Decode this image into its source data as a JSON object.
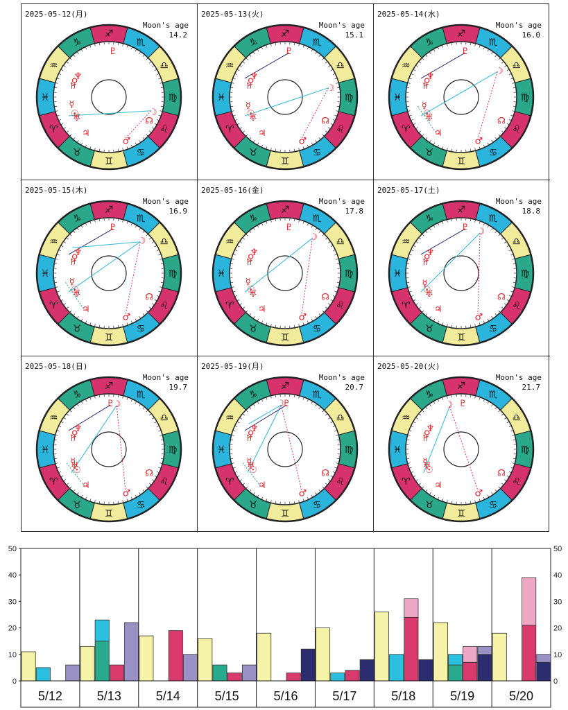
{
  "header": {
    "moon_age_label": "Moon's age"
  },
  "planet_glyphs": {
    "moon": "☽",
    "sun": "☉",
    "mercury": "☿",
    "venus": "♀",
    "mars": "♂",
    "jupiter": "♃",
    "saturn": "♄",
    "uranus": "♅",
    "neptune": "♆",
    "pluto": "♇",
    "node": "☊"
  },
  "sign_glyphs": [
    "♈",
    "♉",
    "♊",
    "♋",
    "♌",
    "♍",
    "♎",
    "♏",
    "♐",
    "♑",
    "♒",
    "♓"
  ],
  "sign_colors": [
    "#d6326b",
    "#2ba889",
    "#f1ec9c",
    "#2bb5dd",
    "#d6326b",
    "#2ba889",
    "#f1ec9c",
    "#2bb5dd",
    "#d6326b",
    "#2ba889",
    "#f1ec9c",
    "#2bb5dd"
  ],
  "days": [
    {
      "date": "2025-05-12(月)",
      "moon_age": "14.2"
    },
    {
      "date": "2025-05-13(火)",
      "moon_age": "15.1"
    },
    {
      "date": "2025-05-14(水)",
      "moon_age": "16.0"
    },
    {
      "date": "2025-05-15(木)",
      "moon_age": "16.9"
    },
    {
      "date": "2025-05-16(金)",
      "moon_age": "17.8"
    },
    {
      "date": "2025-05-17(土)",
      "moon_age": "18.8"
    },
    {
      "date": "2025-05-18(日)",
      "moon_age": "19.7"
    },
    {
      "date": "2025-05-19(月)",
      "moon_age": "20.7"
    },
    {
      "date": "2025-05-20(火)",
      "moon_age": "21.7"
    }
  ],
  "chart_data": {
    "type": "bar",
    "categories": [
      "5/12",
      "5/13",
      "5/14",
      "5/15",
      "5/16",
      "5/17",
      "5/18",
      "5/19",
      "5/20"
    ],
    "ylim": [
      0,
      50
    ],
    "yticks": [
      0,
      10,
      20,
      30,
      40,
      50
    ],
    "grid": false,
    "colors": [
      "#f5f3a8",
      "#2cc0e0",
      "#2aaa8c",
      "#d83a6e",
      "#eea7c5",
      "#9a92c4",
      "#2a2c6e"
    ],
    "bars": [
      [
        {
          "segments": [
            {
              "value": 11,
              "color": 0
            }
          ]
        },
        {
          "segments": [
            {
              "value": 5,
              "color": 1
            }
          ]
        },
        {
          "segments": [
            {
              "value": 0,
              "color": 3
            }
          ]
        },
        {
          "segments": [
            {
              "value": 6,
              "color": 5
            }
          ]
        }
      ],
      [
        {
          "segments": [
            {
              "value": 13,
              "color": 0
            }
          ]
        },
        {
          "segments": [
            {
              "value": 15,
              "color": 2
            },
            {
              "value": 8,
              "color": 1
            }
          ]
        },
        {
          "segments": [
            {
              "value": 6,
              "color": 3
            }
          ]
        },
        {
          "segments": [
            {
              "value": 22,
              "color": 5
            }
          ]
        }
      ],
      [
        {
          "segments": [
            {
              "value": 17,
              "color": 0
            }
          ]
        },
        {
          "segments": [
            {
              "value": 0,
              "color": 1
            }
          ]
        },
        {
          "segments": [
            {
              "value": 19,
              "color": 3
            }
          ]
        },
        {
          "segments": [
            {
              "value": 10,
              "color": 5
            }
          ]
        }
      ],
      [
        {
          "segments": [
            {
              "value": 16,
              "color": 0
            }
          ]
        },
        {
          "segments": [
            {
              "value": 6,
              "color": 2
            }
          ]
        },
        {
          "segments": [
            {
              "value": 3,
              "color": 3
            }
          ]
        },
        {
          "segments": [
            {
              "value": 6,
              "color": 5
            }
          ]
        }
      ],
      [
        {
          "segments": [
            {
              "value": 18,
              "color": 0
            }
          ]
        },
        {
          "segments": [
            {
              "value": 0,
              "color": 1
            }
          ]
        },
        {
          "segments": [
            {
              "value": 3,
              "color": 3
            }
          ]
        },
        {
          "segments": [
            {
              "value": 12,
              "color": 6
            }
          ]
        }
      ],
      [
        {
          "segments": [
            {
              "value": 20,
              "color": 0
            }
          ]
        },
        {
          "segments": [
            {
              "value": 3,
              "color": 1
            }
          ]
        },
        {
          "segments": [
            {
              "value": 4,
              "color": 3
            }
          ]
        },
        {
          "segments": [
            {
              "value": 8,
              "color": 6
            }
          ]
        }
      ],
      [
        {
          "segments": [
            {
              "value": 26,
              "color": 0
            }
          ]
        },
        {
          "segments": [
            {
              "value": 10,
              "color": 1
            }
          ]
        },
        {
          "segments": [
            {
              "value": 24,
              "color": 3
            },
            {
              "value": 7,
              "color": 4
            }
          ]
        },
        {
          "segments": [
            {
              "value": 8,
              "color": 6
            }
          ]
        }
      ],
      [
        {
          "segments": [
            {
              "value": 22,
              "color": 0
            }
          ]
        },
        {
          "segments": [
            {
              "value": 6,
              "color": 2
            },
            {
              "value": 4,
              "color": 1
            }
          ]
        },
        {
          "segments": [
            {
              "value": 7,
              "color": 3
            },
            {
              "value": 6,
              "color": 4
            }
          ]
        },
        {
          "segments": [
            {
              "value": 10,
              "color": 6
            },
            {
              "value": 3,
              "color": 5
            }
          ]
        }
      ],
      [
        {
          "segments": [
            {
              "value": 18,
              "color": 0
            }
          ]
        },
        {
          "segments": [
            {
              "value": 0,
              "color": 1
            }
          ]
        },
        {
          "segments": [
            {
              "value": 21,
              "color": 3
            },
            {
              "value": 18,
              "color": 4
            }
          ]
        },
        {
          "segments": [
            {
              "value": 7,
              "color": 6
            },
            {
              "value": 3,
              "color": 5
            }
          ]
        }
      ]
    ]
  }
}
